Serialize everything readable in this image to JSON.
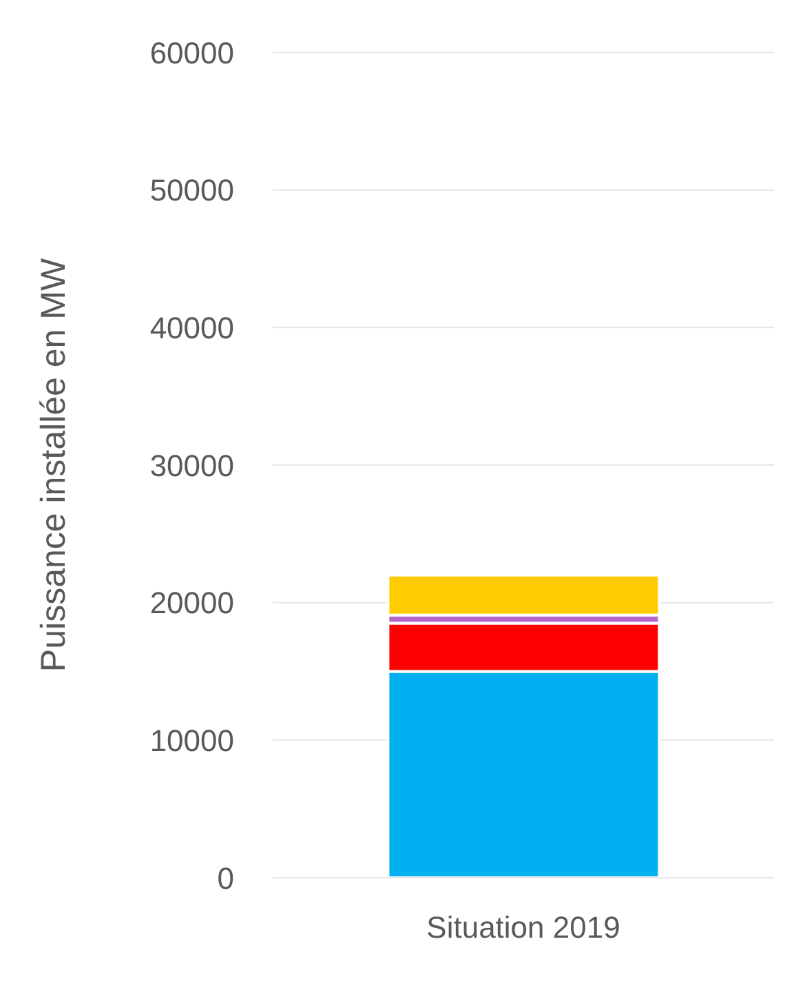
{
  "chart_data": {
    "type": "bar",
    "stacked": true,
    "ylabel": "Puissance installée en MW",
    "categories": [
      "Situation 2019"
    ],
    "series": [
      {
        "color": "#00b0f0",
        "values": [
          15000
        ]
      },
      {
        "color": "#ff0000",
        "values": [
          3500
        ]
      },
      {
        "color": "#b266cc",
        "values": [
          600
        ]
      },
      {
        "color": "#ffcc00",
        "values": [
          2900
        ]
      }
    ],
    "ylim": [
      0,
      60000
    ],
    "yticks": [
      0,
      10000,
      20000,
      30000,
      40000,
      50000,
      60000
    ],
    "grid": "y"
  }
}
